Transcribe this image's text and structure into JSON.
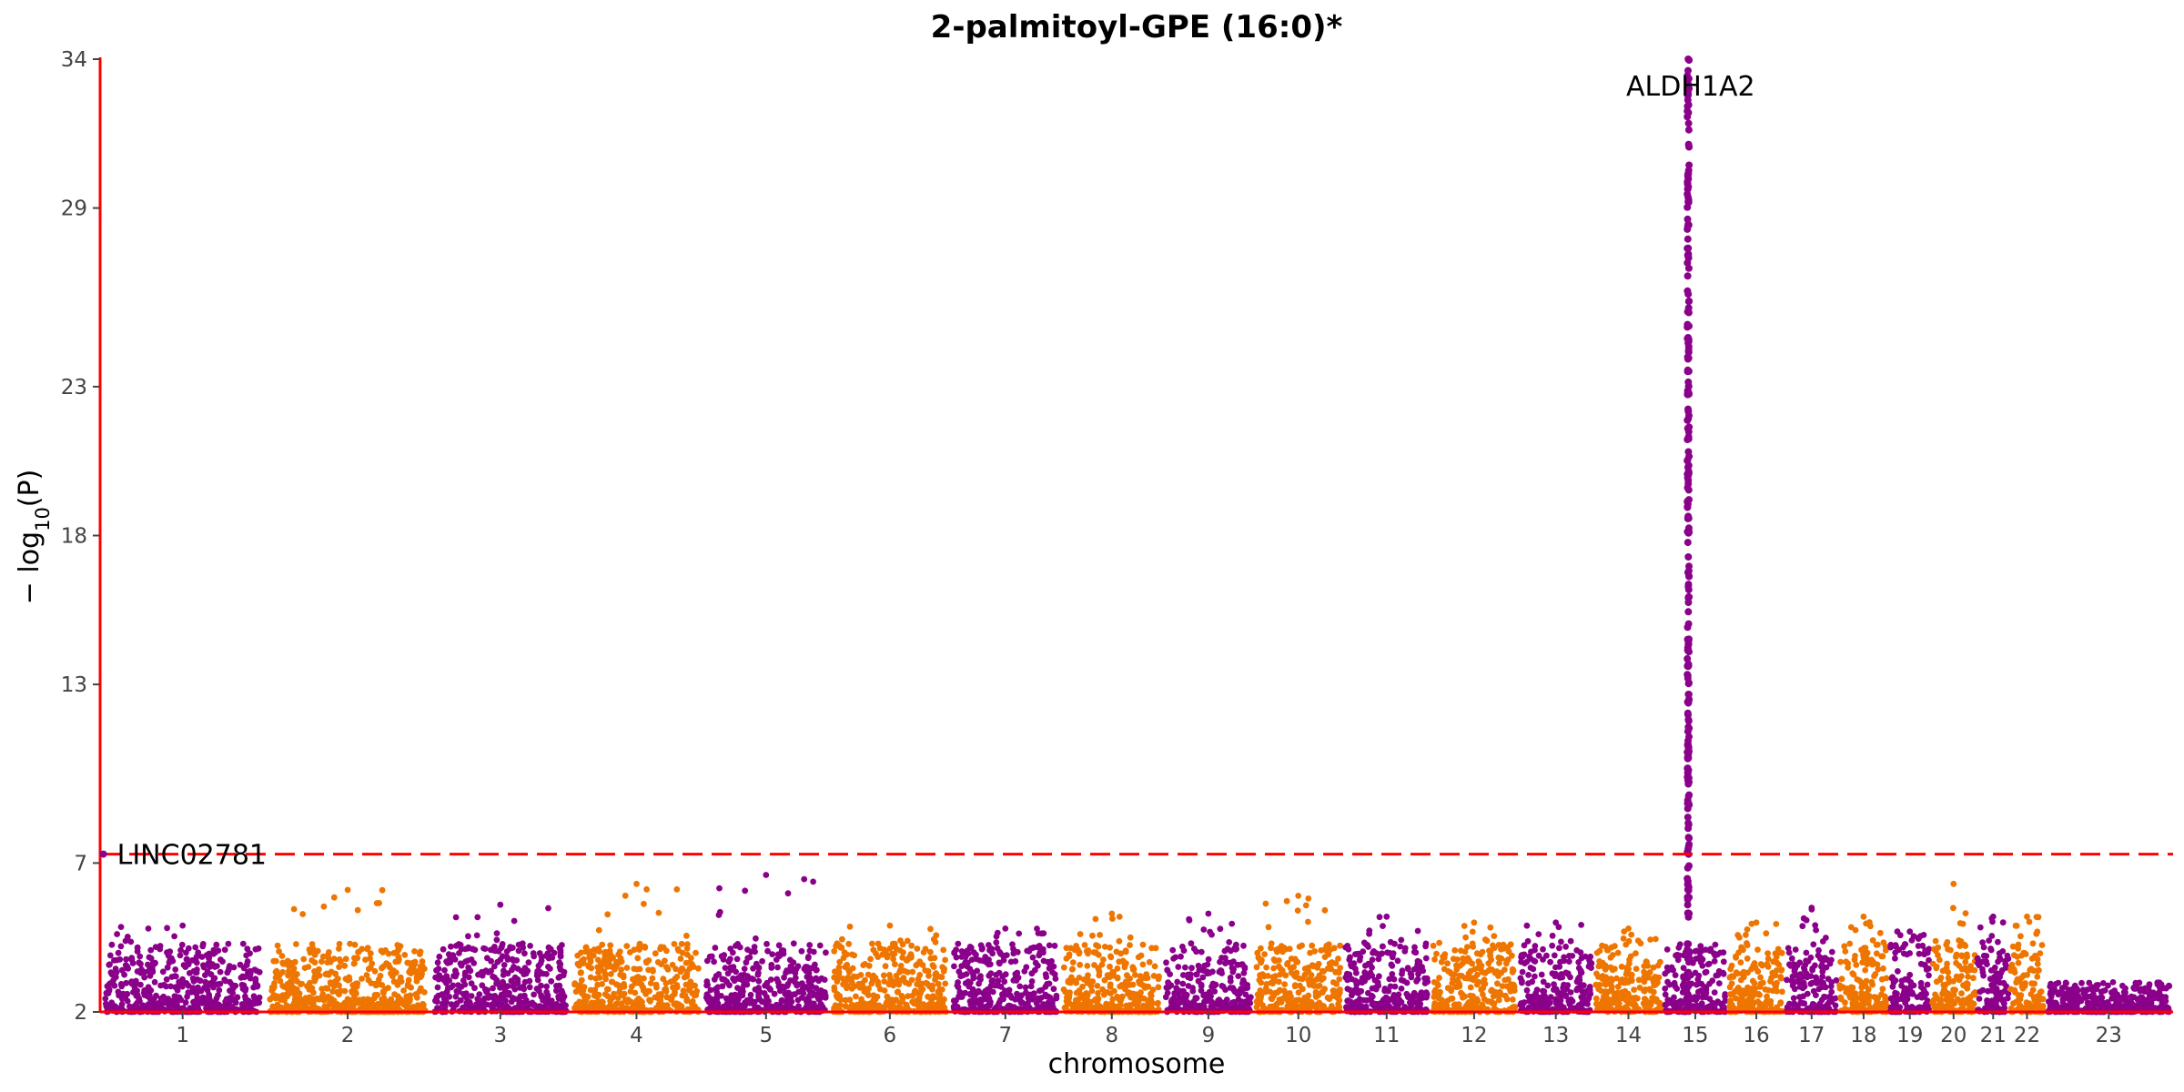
{
  "chart_data": {
    "type": "scatter",
    "subtype": "manhattan",
    "title": "2-palmitoyl-GPE (16:0)*",
    "xlabel": "chromosome",
    "ylabel": "− log₁₀(P)",
    "ylabel_parts": {
      "prefix": "− log",
      "subscript": "10",
      "suffix": "(P)"
    },
    "ylim": [
      2,
      34
    ],
    "yticks": [
      2,
      7,
      13,
      18,
      23,
      29,
      34
    ],
    "grid": false,
    "legend": "none",
    "significance_threshold": 7.3,
    "colors": {
      "odd_chromosomes": "#8B008B",
      "even_chromosomes": "#EE7600",
      "threshold_line": "#FF0000",
      "axis": "#FF0000"
    },
    "chromosomes": [
      {
        "label": "1",
        "start": 0,
        "end": 1.0,
        "peak": 4.9
      },
      {
        "label": "2",
        "start": 1.0,
        "end": 2.0,
        "peak": 6.1
      },
      {
        "label": "3",
        "start": 2.0,
        "end": 2.85,
        "peak": 5.6
      },
      {
        "label": "4",
        "start": 2.85,
        "end": 3.65,
        "peak": 6.3
      },
      {
        "label": "5",
        "start": 3.65,
        "end": 4.42,
        "peak": 6.6
      },
      {
        "label": "6",
        "start": 4.42,
        "end": 5.15,
        "peak": 4.9
      },
      {
        "label": "7",
        "start": 5.15,
        "end": 5.82,
        "peak": 4.8
      },
      {
        "label": "8",
        "start": 5.82,
        "end": 6.44,
        "peak": 5.3
      },
      {
        "label": "9",
        "start": 6.44,
        "end": 6.99,
        "peak": 5.3
      },
      {
        "label": "10",
        "start": 6.99,
        "end": 7.53,
        "peak": 5.9
      },
      {
        "label": "11",
        "start": 7.53,
        "end": 8.06,
        "peak": 5.2
      },
      {
        "label": "12",
        "start": 8.06,
        "end": 8.59,
        "peak": 5.0
      },
      {
        "label": "13",
        "start": 8.59,
        "end": 9.05,
        "peak": 5.0
      },
      {
        "label": "14",
        "start": 9.05,
        "end": 9.47,
        "peak": 4.8
      },
      {
        "label": "15",
        "start": 9.47,
        "end": 9.86,
        "peak": 34.0
      },
      {
        "label": "16",
        "start": 9.86,
        "end": 10.21,
        "peak": 5.0
      },
      {
        "label": "17",
        "start": 10.21,
        "end": 10.53,
        "peak": 5.5
      },
      {
        "label": "18",
        "start": 10.53,
        "end": 10.84,
        "peak": 5.2
      },
      {
        "label": "19",
        "start": 10.84,
        "end": 11.09,
        "peak": 4.7
      },
      {
        "label": "20",
        "start": 11.09,
        "end": 11.37,
        "peak": 6.3
      },
      {
        "label": "21",
        "start": 11.37,
        "end": 11.57,
        "peak": 5.2
      },
      {
        "label": "22",
        "start": 11.57,
        "end": 11.78,
        "peak": 5.2
      },
      {
        "label": "23",
        "start": 11.78,
        "end": 12.56,
        "peak": 3.0
      }
    ],
    "annotations": [
      {
        "label": "ALDH1A2",
        "chromosome": "15",
        "x": 9.62,
        "y": 34.0
      },
      {
        "label": "LINC02781",
        "chromosome": "1",
        "x": 0.02,
        "y": 7.3
      }
    ]
  }
}
